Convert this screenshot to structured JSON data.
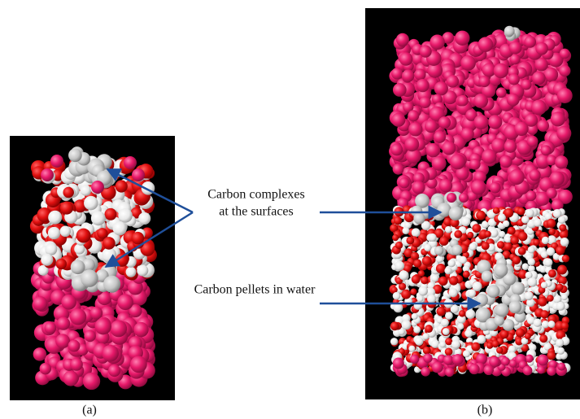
{
  "annotations": {
    "complexes_line1": "Carbon complexes",
    "complexes_line2": "at the surfaces",
    "pellets": "Carbon pellets in water"
  },
  "captions": {
    "a": "(a)",
    "b": "(b)"
  }
}
